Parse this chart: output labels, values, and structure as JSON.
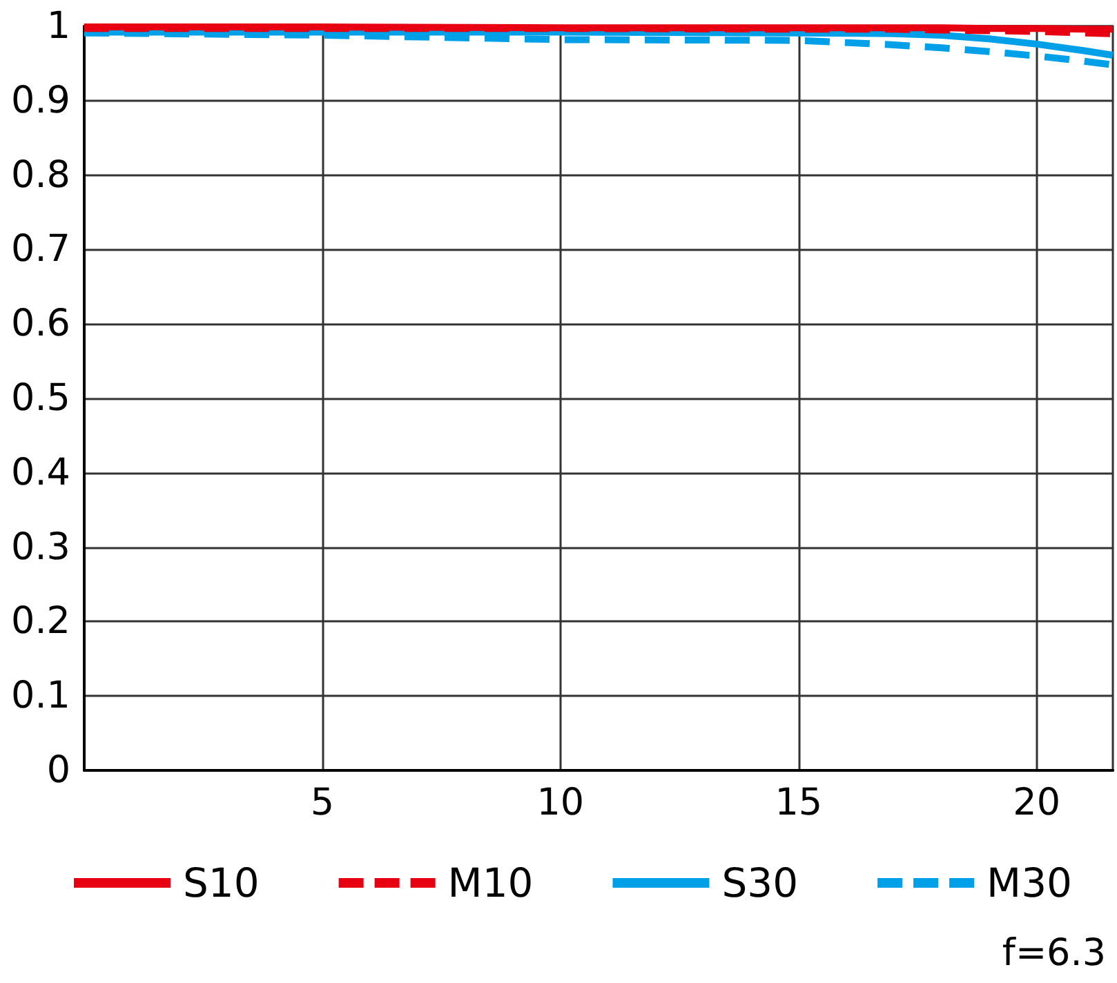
{
  "chart_data": {
    "type": "line",
    "x": [
      0,
      5,
      10,
      15,
      17,
      18,
      19,
      20,
      21,
      21.6
    ],
    "series": [
      {
        "name": "S10",
        "color": "#e60012",
        "line_style": "solid",
        "values": [
          0.999,
          0.999,
          0.998,
          0.998,
          0.998,
          0.998,
          0.997,
          0.997,
          0.996,
          0.996
        ]
      },
      {
        "name": "M10",
        "color": "#e60012",
        "line_style": "dashed",
        "values": [
          0.997,
          0.997,
          0.997,
          0.996,
          0.996,
          0.995,
          0.994,
          0.993,
          0.991,
          0.99
        ]
      },
      {
        "name": "S30",
        "color": "#00a0e9",
        "line_style": "solid",
        "values": [
          0.992,
          0.992,
          0.992,
          0.991,
          0.99,
          0.988,
          0.983,
          0.976,
          0.967,
          0.961
        ]
      },
      {
        "name": "M30",
        "color": "#00a0e9",
        "line_style": "dashed",
        "values": [
          0.991,
          0.988,
          0.982,
          0.981,
          0.975,
          0.971,
          0.966,
          0.96,
          0.953,
          0.948
        ]
      }
    ],
    "xlim": [
      0,
      21.6
    ],
    "xticks": [
      5,
      10,
      15,
      20
    ],
    "ylim": [
      0,
      1
    ],
    "yticks": [
      0,
      0.1,
      0.2,
      0.3,
      0.4,
      0.5,
      0.6,
      0.7,
      0.8,
      0.9,
      1
    ],
    "grid": true,
    "legend": "bottom",
    "marker": "none",
    "annotations": [
      "f=6.3"
    ]
  }
}
